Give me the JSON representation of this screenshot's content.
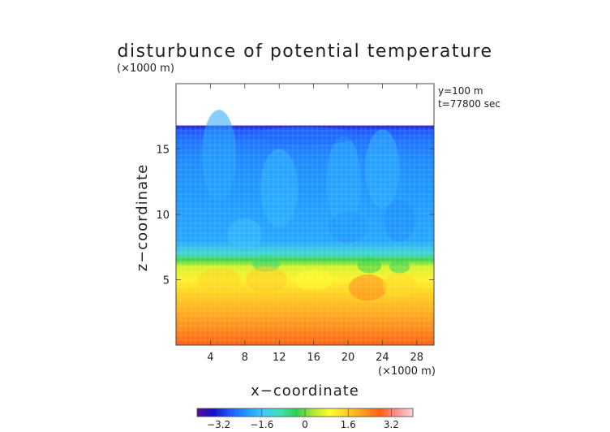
{
  "chart_data": {
    "type": "heatmap",
    "title": "disturbunce of potential temperature",
    "ylabel": "z−coordinate",
    "xlabel": "x−coordinate",
    "yunit": "(×1000 m)",
    "xunit": "(×1000 m)",
    "annotations": [
      "y=100 m",
      "t=77800 sec"
    ],
    "xlim": [
      0,
      30
    ],
    "ylim": [
      0,
      20
    ],
    "x_ticks": [
      4,
      8,
      12,
      16,
      20,
      24,
      28
    ],
    "x_tick_labels": [
      "4",
      "8",
      "12",
      "16",
      "20",
      "24",
      "28"
    ],
    "y_ticks": [
      5,
      10,
      15
    ],
    "y_tick_labels": [
      "5",
      "10",
      "15"
    ],
    "colorbar": {
      "range": [
        -4,
        4
      ],
      "ticks": [
        -3.2,
        -1.6,
        0,
        1.6,
        3.2
      ],
      "tick_labels": [
        "−3.2",
        "−1.6",
        "0",
        "1.6",
        "3.2"
      ],
      "colors": [
        "#5a0aa0",
        "#1010d0",
        "#1e5bff",
        "#1e9bff",
        "#3ecbff",
        "#40e0b0",
        "#30d050",
        "#b0e830",
        "#ffff30",
        "#ffd020",
        "#ff9a20",
        "#ff6010",
        "#ff8f8f",
        "#ffd6d6"
      ]
    },
    "field_top_z": 16.8,
    "vertical_profile": {
      "z": [
        0,
        1,
        2,
        3,
        4,
        5,
        6,
        6.5,
        7,
        8,
        10,
        12,
        14,
        15.5,
        16.5,
        16.8
      ],
      "value": [
        2.8,
        2.4,
        2.1,
        1.8,
        1.5,
        1.1,
        0.6,
        -0.2,
        -1.2,
        -2.0,
        -2.1,
        -2.2,
        -2.3,
        -2.5,
        -2.8,
        -3.6
      ]
    }
  }
}
